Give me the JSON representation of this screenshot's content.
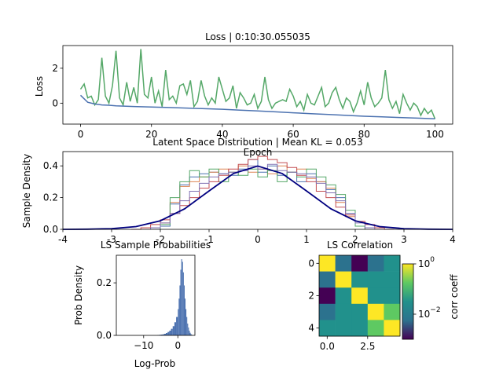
{
  "chart_data": [
    {
      "type": "line",
      "title": "Loss | 0:10:30.055035",
      "xlabel": "Epoch",
      "ylabel": "Loss",
      "xlim": [
        -5,
        105
      ],
      "ylim": [
        -1.2,
        3.3
      ],
      "xticks": [
        0,
        20,
        40,
        60,
        80,
        100
      ],
      "yticks": [
        0,
        2
      ],
      "colors": {
        "series_0": "#55a868",
        "series_1": "#4c72b0"
      },
      "series": [
        {
          "x": [
            0,
            1,
            2,
            3,
            4,
            5,
            6,
            7,
            8,
            9,
            10,
            11,
            12,
            13,
            14,
            15,
            16,
            17,
            18,
            19,
            20,
            21,
            22,
            23,
            24,
            25,
            26,
            27,
            28,
            29,
            30,
            31,
            32,
            33,
            34,
            35,
            36,
            37,
            38,
            39,
            40,
            41,
            42,
            43,
            44,
            45,
            46,
            47,
            48,
            49,
            50,
            51,
            52,
            53,
            54,
            55,
            56,
            57,
            58,
            59,
            60,
            61,
            62,
            63,
            64,
            65,
            66,
            67,
            68,
            69,
            70,
            71,
            72,
            73,
            74,
            75,
            76,
            77,
            78,
            79,
            80,
            81,
            82,
            83,
            84,
            85,
            86,
            87,
            88,
            89,
            90,
            91,
            92,
            93,
            94,
            95,
            96,
            97,
            98,
            99,
            100
          ],
          "values": [
            0.8,
            1.1,
            0.3,
            0.4,
            -0.1,
            0.2,
            2.6,
            0.4,
            0.0,
            1.0,
            3.0,
            0.3,
            -0.1,
            1.2,
            0.1,
            0.9,
            0.0,
            3.1,
            0.5,
            0.3,
            1.5,
            0.0,
            0.7,
            -0.2,
            1.9,
            0.2,
            0.4,
            0.0,
            1.0,
            1.1,
            0.5,
            1.3,
            -0.2,
            0.1,
            1.3,
            0.4,
            -0.1,
            0.3,
            0.0,
            1.5,
            0.8,
            0.1,
            0.3,
            1.0,
            -0.3,
            0.6,
            0.3,
            -0.1,
            0.0,
            0.5,
            -0.3,
            0.1,
            1.5,
            0.2,
            -0.3,
            0.0,
            0.1,
            0.2,
            0.1,
            0.8,
            0.4,
            -0.2,
            0.1,
            -0.4,
            0.5,
            0.0,
            -0.1,
            0.4,
            0.9,
            -0.2,
            0.0,
            0.6,
            0.9,
            0.2,
            -0.3,
            0.3,
            0.1,
            -0.5,
            0.0,
            0.7,
            -0.1,
            1.2,
            0.3,
            -0.2,
            0.0,
            0.3,
            1.9,
            0.2,
            -0.3,
            0.1,
            -0.6,
            0.5,
            0.0,
            -0.4,
            0.0,
            -0.2,
            -0.7,
            -0.3,
            -0.6,
            -0.4,
            -0.9
          ]
        },
        {
          "x": [
            0,
            2,
            4,
            6,
            8,
            10,
            15,
            20,
            25,
            30,
            35,
            40,
            45,
            50,
            55,
            60,
            65,
            70,
            75,
            80,
            85,
            90,
            95,
            100
          ],
          "values": [
            0.45,
            0.05,
            -0.05,
            -0.1,
            -0.12,
            -0.15,
            -0.19,
            -0.22,
            -0.25,
            -0.28,
            -0.32,
            -0.35,
            -0.4,
            -0.45,
            -0.5,
            -0.55,
            -0.6,
            -0.65,
            -0.7,
            -0.75,
            -0.78,
            -0.82,
            -0.86,
            -0.9
          ]
        }
      ]
    },
    {
      "type": "area",
      "title": "Latent Space Distribution | Mean KL = 0.053",
      "ylabel": "Sample Density",
      "xlim": [
        -4,
        4
      ],
      "ylim": [
        0,
        0.49
      ],
      "xticks": [
        -4,
        -3,
        -2,
        -1,
        0,
        1,
        2,
        3,
        4
      ],
      "yticks": [
        0.0,
        0.2,
        0.4
      ],
      "colors": {
        "normal_curve": "#000080",
        "hist_1": "#4c72b0",
        "hist_2": "#dd8452",
        "hist_3": "#55a868",
        "hist_4": "#c44e52",
        "hist_5": "#8172b3"
      },
      "series": [
        {
          "x": [
            -4,
            -3.5,
            -3,
            -2.5,
            -2,
            -1.5,
            -1,
            -0.5,
            0,
            0.5,
            1,
            1.5,
            2,
            2.5,
            3,
            3.5,
            4
          ],
          "values": [
            0.0001,
            0.0009,
            0.0044,
            0.0175,
            0.054,
            0.1295,
            0.242,
            0.3521,
            0.3989,
            0.3521,
            0.242,
            0.1295,
            0.054,
            0.0175,
            0.0044,
            0.0009,
            0.0001
          ]
        },
        {
          "x": [
            -2.0,
            -1.8,
            -1.6,
            -1.4,
            -1.2,
            -1.0,
            -0.8,
            -0.6,
            -0.4,
            -0.2,
            0.0,
            0.2,
            0.4,
            0.6,
            0.8,
            1.0,
            1.2,
            1.4,
            1.6,
            1.8,
            2.0
          ],
          "values": [
            0.02,
            0.16,
            0.28,
            0.33,
            0.35,
            0.36,
            0.35,
            0.34,
            0.38,
            0.44,
            0.36,
            0.4,
            0.34,
            0.36,
            0.3,
            0.35,
            0.3,
            0.25,
            0.2,
            0.1,
            0.02
          ]
        },
        {
          "x": [
            -2.0,
            -1.8,
            -1.6,
            -1.4,
            -1.2,
            -1.0,
            -0.8,
            -0.6,
            -0.4,
            -0.2,
            0.0,
            0.2,
            0.4,
            0.6,
            0.8,
            1.0,
            1.2,
            1.4,
            1.6,
            1.8,
            2.0
          ],
          "values": [
            0.04,
            0.17,
            0.27,
            0.3,
            0.33,
            0.36,
            0.38,
            0.36,
            0.4,
            0.36,
            0.38,
            0.35,
            0.4,
            0.36,
            0.38,
            0.32,
            0.3,
            0.26,
            0.17,
            0.08,
            0.02
          ]
        },
        {
          "x": [
            -2.0,
            -1.8,
            -1.6,
            -1.4,
            -1.2,
            -1.0,
            -0.8,
            -0.6,
            -0.4,
            -0.2,
            0.0,
            0.2,
            0.4,
            0.6,
            0.8,
            1.0,
            1.2,
            1.4,
            1.6,
            1.8,
            2.0
          ],
          "values": [
            0.03,
            0.2,
            0.3,
            0.37,
            0.33,
            0.38,
            0.3,
            0.36,
            0.34,
            0.38,
            0.33,
            0.37,
            0.3,
            0.36,
            0.33,
            0.38,
            0.33,
            0.28,
            0.22,
            0.12,
            0.02
          ]
        },
        {
          "x": [
            -2.6,
            -2.4,
            -2.2,
            -2.0,
            -1.8,
            -1.6,
            -1.4,
            -1.2,
            -1.0,
            -0.8,
            -0.6,
            -0.4,
            -0.2,
            0.0,
            0.2,
            0.4,
            0.6,
            0.8,
            1.0,
            1.2,
            1.4,
            1.6,
            1.8,
            2.0,
            2.2,
            2.4,
            2.6
          ],
          "values": [
            0.0,
            0.01,
            0.03,
            0.06,
            0.1,
            0.15,
            0.2,
            0.26,
            0.3,
            0.34,
            0.38,
            0.41,
            0.44,
            0.46,
            0.44,
            0.42,
            0.39,
            0.34,
            0.3,
            0.24,
            0.2,
            0.14,
            0.09,
            0.05,
            0.03,
            0.01,
            0.0
          ]
        },
        {
          "x": [
            -2.2,
            -2.0,
            -1.8,
            -1.6,
            -1.4,
            -1.2,
            -1.0,
            -0.8,
            -0.6,
            -0.4,
            -0.2,
            0.0,
            0.2,
            0.4,
            0.6,
            0.8,
            1.0,
            1.2,
            1.4,
            1.6,
            1.8,
            2.0,
            2.2
          ],
          "values": [
            0.01,
            0.04,
            0.1,
            0.18,
            0.24,
            0.29,
            0.33,
            0.35,
            0.36,
            0.37,
            0.4,
            0.38,
            0.41,
            0.37,
            0.36,
            0.35,
            0.33,
            0.29,
            0.23,
            0.18,
            0.1,
            0.04,
            0.01
          ]
        }
      ]
    },
    {
      "type": "bar",
      "title": "LS Sample Probabilities",
      "xlabel": "Log-Prob",
      "ylabel": "Prob Density",
      "xlim": [
        -18,
        5
      ],
      "ylim": [
        0,
        0.305
      ],
      "xticks": [
        -10,
        0
      ],
      "yticks": [
        0.0,
        0.2
      ],
      "colors": {
        "bars": "#4c72b0"
      },
      "bins_x": [
        -6.0,
        -5.5,
        -5.0,
        -4.5,
        -4.0,
        -3.5,
        -3.0,
        -2.5,
        -2.0,
        -1.5,
        -1.0,
        -0.5,
        0.0,
        0.25,
        0.5,
        0.75,
        1.0,
        1.25,
        1.5,
        1.75,
        2.0,
        2.25,
        2.5,
        2.75,
        3.0,
        3.25,
        3.5,
        3.75,
        4.0
      ],
      "values": [
        0.001,
        0.002,
        0.003,
        0.004,
        0.006,
        0.009,
        0.013,
        0.018,
        0.025,
        0.035,
        0.05,
        0.07,
        0.1,
        0.14,
        0.19,
        0.25,
        0.29,
        0.28,
        0.24,
        0.19,
        0.14,
        0.1,
        0.07,
        0.045,
        0.03,
        0.018,
        0.01,
        0.005,
        0.002
      ]
    },
    {
      "type": "heatmap",
      "title": "LS Correlation",
      "colorbar_label": "corr coeff",
      "colorbar_scale": "log",
      "colorbar_ticks": [
        "10^0",
        "10^-2"
      ],
      "xticks": [
        "0.0",
        "2.5"
      ],
      "yticks": [
        "0",
        "2",
        "4"
      ],
      "colors": {
        "low": "#440154",
        "mid_low": "#2c728e",
        "mid": "#21918c",
        "mid_high": "#5ec962",
        "high": "#fde725"
      },
      "matrix": [
        [
          1.0,
          0.01,
          0.001,
          0.005,
          0.02
        ],
        [
          0.01,
          1.0,
          0.03,
          0.03,
          0.03
        ],
        [
          0.001,
          0.03,
          1.0,
          0.03,
          0.03
        ],
        [
          0.005,
          0.03,
          0.03,
          1.0,
          0.3
        ],
        [
          0.02,
          0.03,
          0.03,
          0.3,
          1.0
        ]
      ]
    }
  ]
}
